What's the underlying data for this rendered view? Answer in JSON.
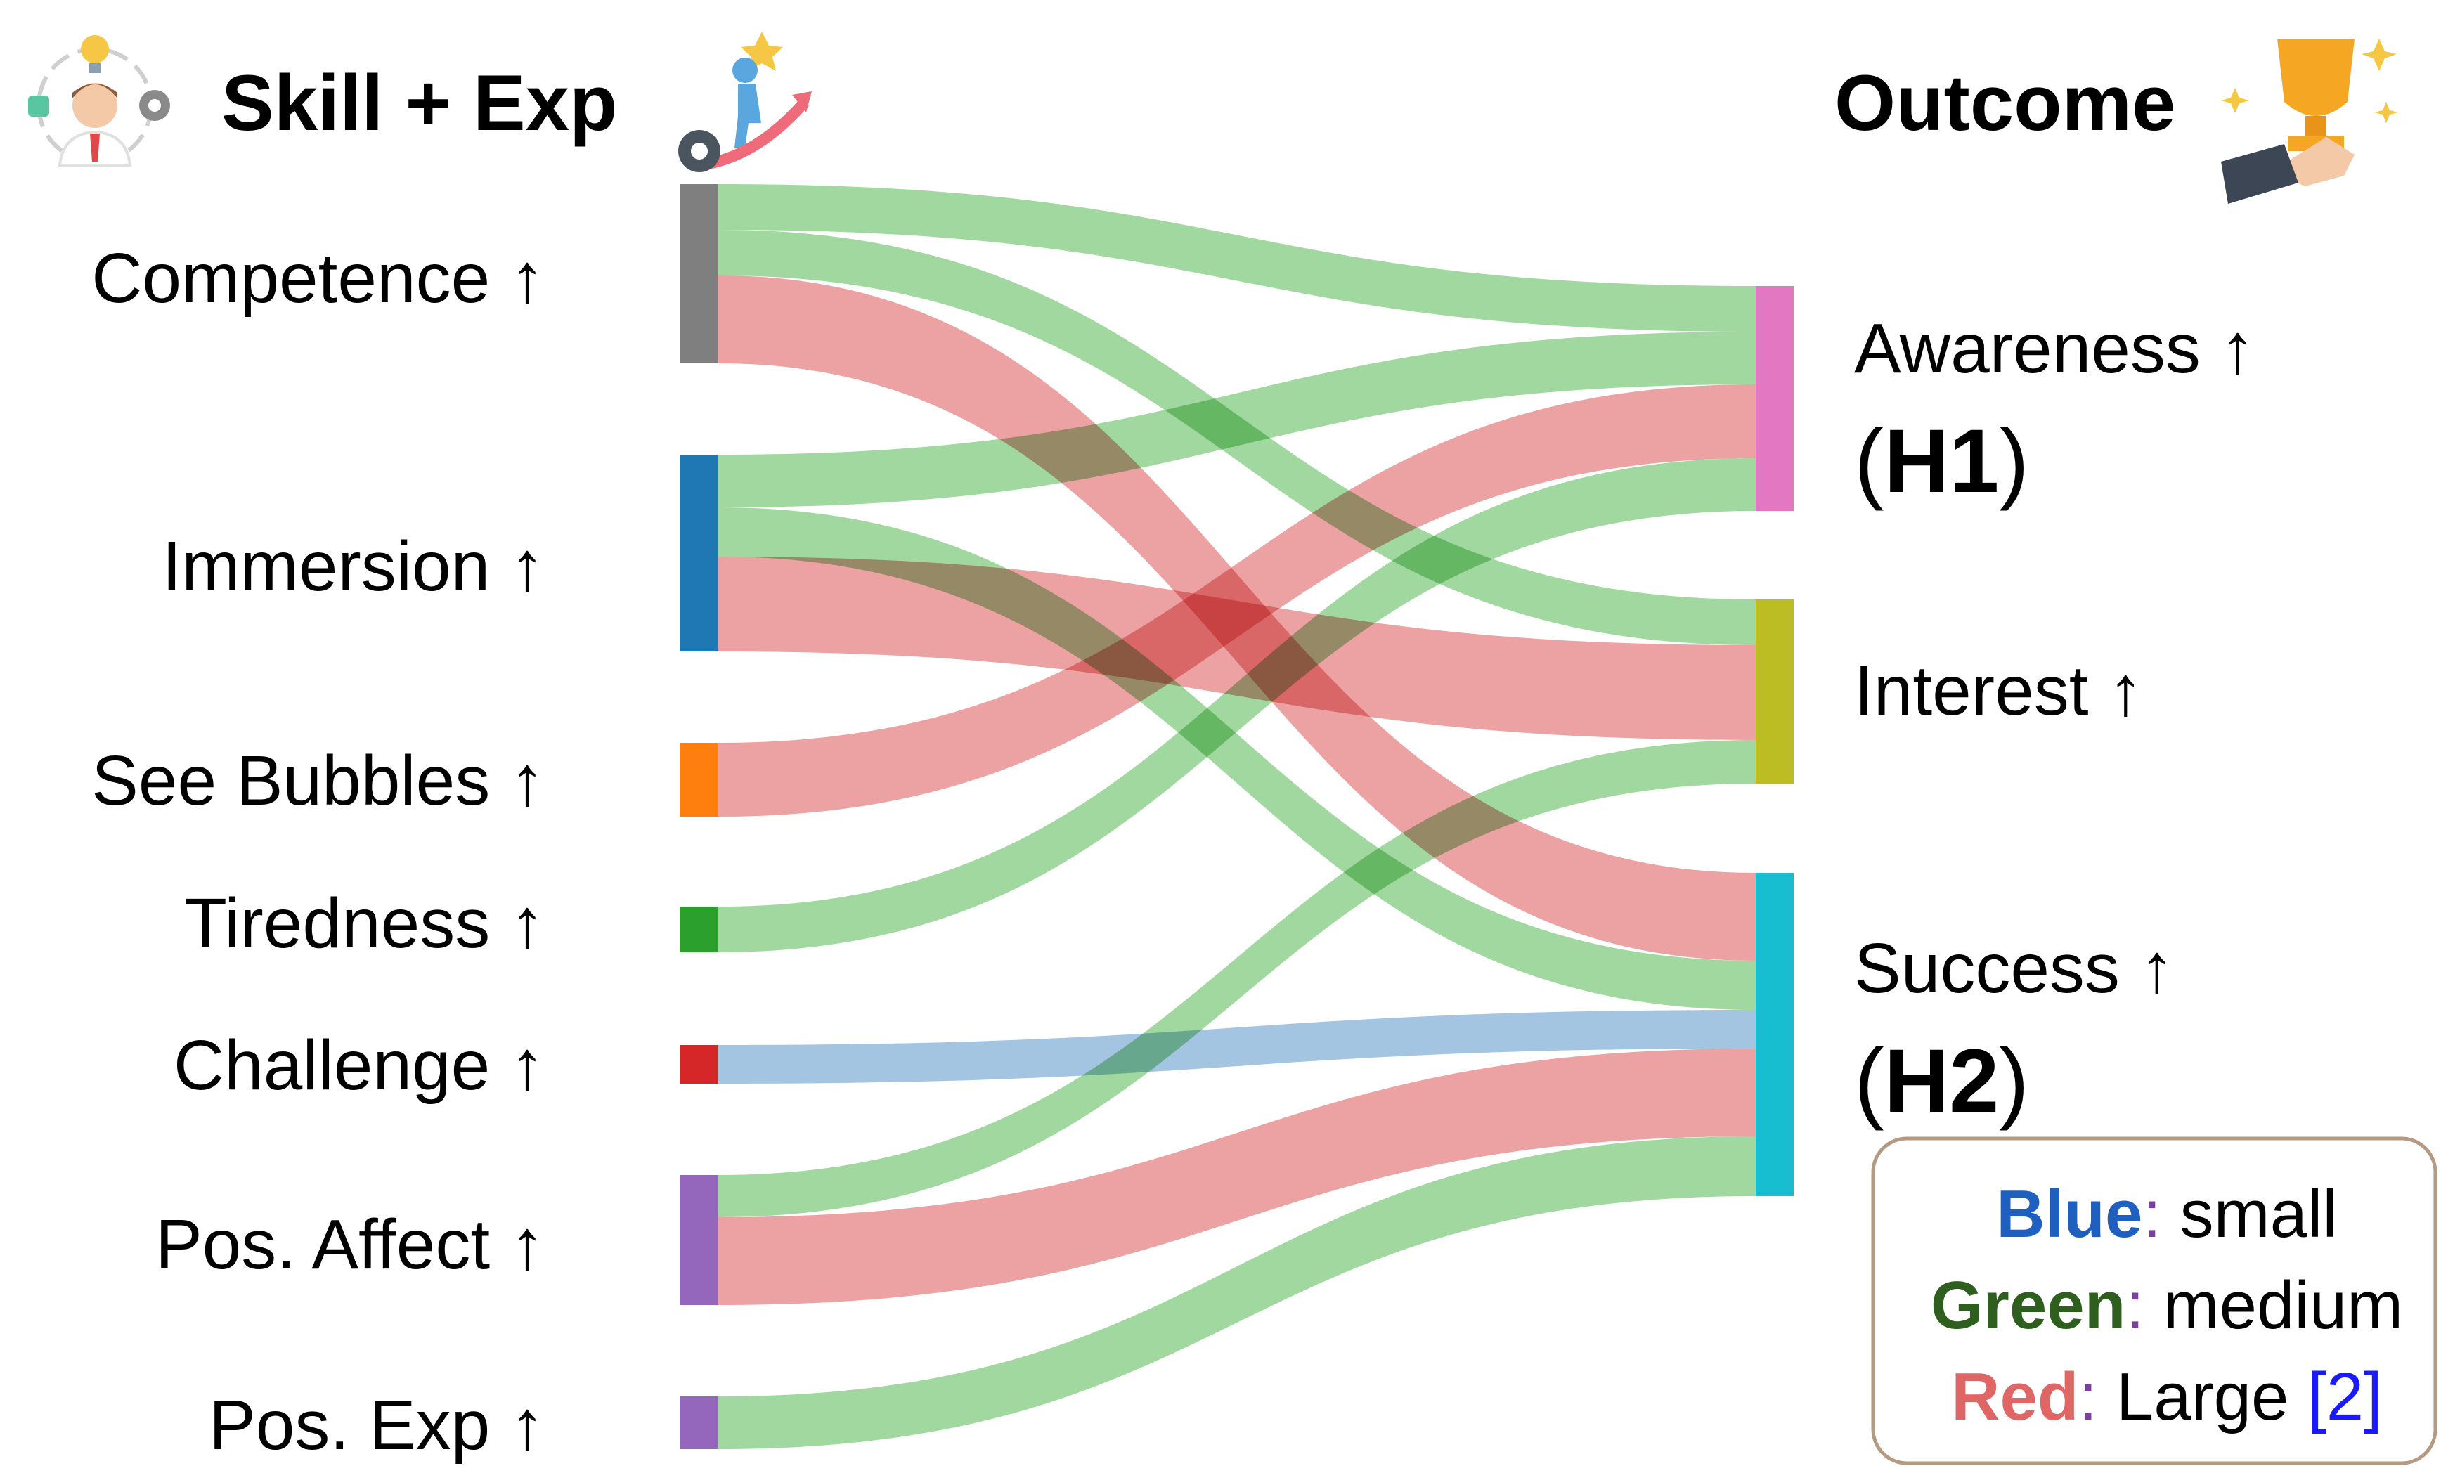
{
  "headers": {
    "left": "Skill + Exp",
    "right": "Outcome"
  },
  "icons": {
    "left_person": "team-person-icon",
    "left_climb": "climbing-success-icon",
    "right_trophy": "trophy-hand-icon"
  },
  "sources": [
    {
      "id": "competence",
      "label": "Competence ↑",
      "color": "#7f7f7f"
    },
    {
      "id": "immersion",
      "label": "Immersion ↑",
      "color": "#1f77b4"
    },
    {
      "id": "see_bubbles",
      "label": "See Bubbles ↑",
      "color": "#ff7f0e"
    },
    {
      "id": "tiredness",
      "label": "Tiredness ↑",
      "color": "#2ca02c"
    },
    {
      "id": "challenge",
      "label": "Challenge ↑",
      "color": "#d62728"
    },
    {
      "id": "pos_affect",
      "label": "Pos. Affect ↑",
      "color": "#9467bd"
    },
    {
      "id": "pos_exp",
      "label": "Pos. Exp ↑",
      "color": "#9467bd"
    }
  ],
  "targets": [
    {
      "id": "awareness",
      "label": "Awareness ↑",
      "hyp_open": "(",
      "hyp": "H1",
      "hyp_close": ")",
      "color": "#e377c2"
    },
    {
      "id": "interest",
      "label": "Interest ↑",
      "hyp_open": "",
      "hyp": "",
      "hyp_close": "",
      "color": "#bcbd22"
    },
    {
      "id": "success",
      "label": "Success ↑",
      "hyp_open": "(",
      "hyp": "H2",
      "hyp_close": ")",
      "color": "#17becf"
    }
  ],
  "effect_colors": {
    "small": "#8fb8dc",
    "medium": "#8ccf8a",
    "large": "#e88e8f"
  },
  "links": [
    {
      "source": "competence",
      "target": "awareness",
      "effect": "medium"
    },
    {
      "source": "competence",
      "target": "interest",
      "effect": "medium"
    },
    {
      "source": "competence",
      "target": "success",
      "effect": "large"
    },
    {
      "source": "immersion",
      "target": "awareness",
      "effect": "medium"
    },
    {
      "source": "immersion",
      "target": "success",
      "effect": "medium"
    },
    {
      "source": "immersion",
      "target": "interest",
      "effect": "large"
    },
    {
      "source": "see_bubbles",
      "target": "awareness",
      "effect": "large"
    },
    {
      "source": "tiredness",
      "target": "awareness",
      "effect": "medium"
    },
    {
      "source": "challenge",
      "target": "success",
      "effect": "small"
    },
    {
      "source": "pos_affect",
      "target": "interest",
      "effect": "medium"
    },
    {
      "source": "pos_affect",
      "target": "success",
      "effect": "large"
    },
    {
      "source": "pos_exp",
      "target": "success",
      "effect": "medium"
    }
  ],
  "legend": {
    "rows": [
      {
        "word": "Blue",
        "sep": ":",
        "desc": " small",
        "cite": "",
        "word_color": "#1f5fbf",
        "sep_color": "#7b3fa0"
      },
      {
        "word": "Green",
        "sep": ":",
        "desc": " medium",
        "cite": "",
        "word_color": "#2e5f1f",
        "sep_color": "#7b3fa0"
      },
      {
        "word": "Red",
        "sep": ":",
        "desc": " Large ",
        "cite": "[2]",
        "word_color": "#e06666",
        "sep_color": "#7b3fa0"
      }
    ],
    "border_color": "#b59a83",
    "cite_color": "#1a1aff"
  }
}
